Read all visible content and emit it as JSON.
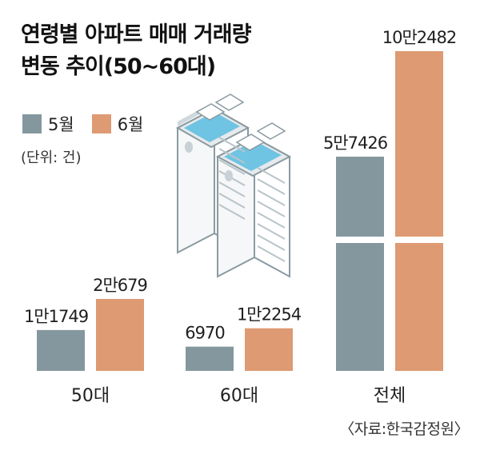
{
  "title_lines": [
    "연령별 아파트 매매 거래량",
    "변동 추이(50~60대)"
  ],
  "legend": [
    {
      "name": "5월",
      "color": "#84979f"
    },
    {
      "name": "6월",
      "color": "#de9a72"
    }
  ],
  "unit": "(단위: 건)",
  "source": "〈자료:한국감정원〉",
  "chart_data": {
    "type": "bar",
    "categories": [
      "50대",
      "60대",
      "전체"
    ],
    "series": [
      {
        "name": "5월",
        "values": [
          11749,
          6970,
          57426
        ],
        "labels": [
          "1만1749",
          "6970",
          "5만7426"
        ]
      },
      {
        "name": "6월",
        "values": [
          20679,
          12254,
          102482
        ],
        "labels": [
          "2만679",
          "1만2254",
          "10만2482"
        ]
      }
    ],
    "axis_break": {
      "category": "전체",
      "note": "broken bars"
    },
    "title": "연령별 아파트 매매 거래량 변동 추이(50~60대)",
    "unit": "(단위: 건)"
  }
}
